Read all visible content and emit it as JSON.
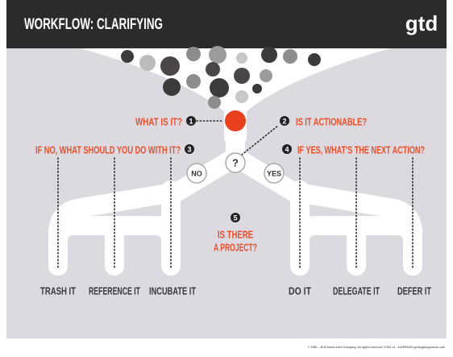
{
  "header": {
    "title": "WORKFLOW: CLARIFYING",
    "logo": "gtd"
  },
  "steps": [
    {
      "number": "1",
      "label": "WHAT IS IT?"
    },
    {
      "number": "2",
      "label": "IS IT ACTIONABLE?"
    },
    {
      "number": "3",
      "label": "IF NO, WHAT SHOULD YOU DO WITH IT?"
    },
    {
      "number": "4",
      "label": "IF YES, WHAT'S THE NEXT ACTION?"
    },
    {
      "number": "5",
      "label": [
        "IS THERE",
        "A PROJECT?"
      ]
    }
  ],
  "decision": {
    "symbol": "?",
    "no": "NO",
    "yes": "YES"
  },
  "outcomes": [
    "TRASH IT",
    "REFERENCE IT",
    "INCUBATE IT",
    "DO IT",
    "DELEGATE IT",
    "DEFER IT"
  ],
  "footer": "© 1990 – 2019 David Allen Company. All rights reserved. 17911 v4 - 22APR2019   gettingthingsdone.com"
}
